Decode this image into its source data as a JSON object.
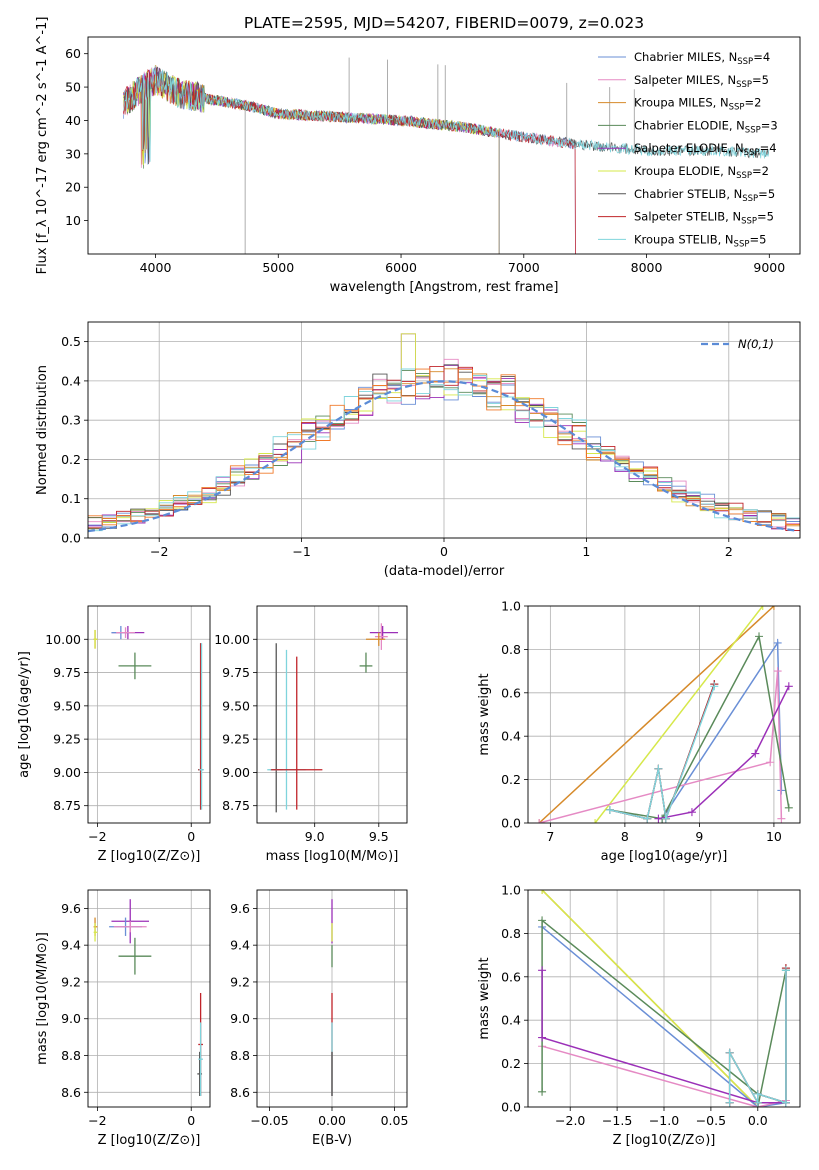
{
  "colors": {
    "Chabrier MILES": "#6a8fd6",
    "Salpeter MILES": "#e58ac4",
    "Kroupa MILES": "#d68a2a",
    "Chabrier ELODIE": "#5a8a5a",
    "Salpeter ELODIE": "#9b30b8",
    "Kroupa ELODIE": "#d6e84a",
    "Chabrier STELIB": "#555555",
    "Salpeter STELIB": "#c0242a",
    "Kroupa STELIB": "#7fd4dc",
    "orange_extra": "#f07a2a",
    "gauss": "#5b8bd6"
  },
  "chart_data": [
    {
      "id": "spectrum",
      "type": "line",
      "title": "PLATE=2595, MJD=54207, FIBERID=0079, z=0.023",
      "xlabel": "wavelength [Angstrom, rest frame]",
      "ylabel": "Flux [f_λ 10^-17 erg cm^-2 s^-1 A^-1]",
      "xlim": [
        3450,
        9250
      ],
      "ylim": [
        0,
        65
      ],
      "xticks": [
        4000,
        5000,
        6000,
        7000,
        8000,
        9000
      ],
      "yticks": [
        10,
        20,
        30,
        40,
        50,
        60
      ],
      "legend_position": "top-right",
      "legend": [
        {
          "model": "Chabrier MILES",
          "n": 4
        },
        {
          "model": "Salpeter MILES",
          "n": 5
        },
        {
          "model": "Kroupa MILES",
          "n": 2
        },
        {
          "model": "Chabrier ELODIE",
          "n": 3
        },
        {
          "model": "Salpeter ELODIE",
          "n": 4
        },
        {
          "model": "Kroupa ELODIE",
          "n": 2
        },
        {
          "model": "Chabrier STELIB",
          "n": 5
        },
        {
          "model": "Salpeter STELIB",
          "n": 5
        },
        {
          "model": "Kroupa STELIB",
          "n": 5
        }
      ],
      "continuum_points": [
        [
          3740,
          45
        ],
        [
          3900,
          50
        ],
        [
          4000,
          52
        ],
        [
          4200,
          48
        ],
        [
          4500,
          46
        ],
        [
          4800,
          44
        ],
        [
          5000,
          42
        ],
        [
          5500,
          41
        ],
        [
          6000,
          40
        ],
        [
          6500,
          38
        ],
        [
          7000,
          35
        ],
        [
          7400,
          33
        ],
        [
          7700,
          32
        ],
        [
          8000,
          31
        ],
        [
          8500,
          31
        ],
        [
          9000,
          30
        ]
      ],
      "series_ends": {
        "Chabrier MILES": 7420,
        "Salpeter MILES": 7420,
        "Kroupa MILES": 6800,
        "Chabrier ELODIE": 6800,
        "Salpeter ELODIE": 6800,
        "Kroupa ELODIE": 6800,
        "Chabrier STELIB": 9000,
        "Salpeter STELIB": 7420,
        "Kroupa STELIB": 9000
      }
    },
    {
      "id": "residuals",
      "type": "step",
      "xlabel": "(data-model)/error",
      "ylabel": "Normed distribution",
      "xlim": [
        -2.5,
        2.5
      ],
      "ylim": [
        0,
        0.55
      ],
      "xticks": [
        -2,
        -1,
        0,
        1,
        2
      ],
      "yticks": [
        0.0,
        0.1,
        0.2,
        0.3,
        0.4,
        0.5
      ],
      "legend_position": "top-right",
      "legend_label": "N(0,1)",
      "bin_width": 0.1
    },
    {
      "id": "age_vs_Z",
      "type": "errorbar",
      "xlabel": "Z [log10(Z/Z⊙)]",
      "ylabel": "age  [log10(age/yr)]",
      "xlim": [
        -2.2,
        0.4
      ],
      "ylim": [
        8.62,
        10.25
      ],
      "xticks": [
        -2,
        0
      ],
      "yticks": [
        8.75,
        9.0,
        9.25,
        9.5,
        9.75,
        10.0
      ],
      "points": [
        {
          "model": "Kroupa MILES",
          "x": -2.05,
          "y": 10.0,
          "xerr": [
            0.03,
            0.05
          ],
          "yerr": [
            0.07,
            0.07
          ]
        },
        {
          "model": "Kroupa ELODIE",
          "x": -2.05,
          "y": 10.0,
          "xerr": [
            0.03,
            0.05
          ],
          "yerr": [
            0.07,
            0.07
          ]
        },
        {
          "model": "Salpeter ELODIE",
          "x": -1.35,
          "y": 10.05,
          "xerr": [
            0.35,
            0.35
          ],
          "yerr": [
            0.05,
            0.05
          ]
        },
        {
          "model": "Chabrier MILES",
          "x": -1.5,
          "y": 10.05,
          "xerr": [
            0.2,
            0.3
          ],
          "yerr": [
            0.05,
            0.05
          ]
        },
        {
          "model": "Salpeter MILES",
          "x": -1.4,
          "y": 10.05,
          "xerr": [
            0.2,
            0.2
          ],
          "yerr": [
            0.04,
            0.04
          ]
        },
        {
          "model": "Chabrier ELODIE",
          "x": -1.2,
          "y": 9.8,
          "xerr": [
            0.35,
            0.35
          ],
          "yerr": [
            0.1,
            0.1
          ]
        },
        {
          "model": "Chabrier STELIB",
          "x": 0.2,
          "y": 9.02,
          "xerr": [
            0.05,
            0.05
          ],
          "yerr": [
            0.3,
            0.95
          ]
        },
        {
          "model": "Salpeter STELIB",
          "x": 0.2,
          "y": 9.02,
          "xerr": [
            0.05,
            0.05
          ],
          "yerr": [
            0.3,
            0.95
          ]
        },
        {
          "model": "Kroupa STELIB",
          "x": 0.22,
          "y": 9.02,
          "xerr": [
            0.05,
            0.05
          ],
          "yerr": [
            0.3,
            0.95
          ]
        }
      ]
    },
    {
      "id": "age_vs_mass",
      "type": "errorbar",
      "xlabel": "mass [log10(M/M⊙)]",
      "ylabel": "",
      "xlim": [
        8.55,
        9.72
      ],
      "ylim": [
        8.62,
        10.25
      ],
      "xticks": [
        9.0,
        9.5
      ],
      "yticks": [
        8.75,
        9.0,
        9.25,
        9.5,
        9.75,
        10.0
      ],
      "points": [
        {
          "model": "Salpeter ELODIE",
          "x": 9.53,
          "y": 10.05,
          "xerr": [
            0.1,
            0.12
          ],
          "yerr": [
            0.05,
            0.05
          ]
        },
        {
          "model": "Salpeter MILES",
          "x": 9.52,
          "y": 10.02,
          "xerr": [
            0.05,
            0.05
          ],
          "yerr": [
            0.1,
            0.1
          ]
        },
        {
          "model": "Kroupa MILES",
          "x": 9.5,
          "y": 10.0,
          "xerr": [
            0.1,
            0.05
          ],
          "yerr": [
            0.05,
            0.05
          ]
        },
        {
          "model": "Chabrier ELODIE",
          "x": 9.4,
          "y": 9.8,
          "xerr": [
            0.05,
            0.05
          ],
          "yerr": [
            0.05,
            0.1
          ]
        },
        {
          "model": "Chabrier STELIB",
          "x": 8.7,
          "y": 9.02,
          "xerr": [
            0.05,
            0.05
          ],
          "yerr": [
            0.32,
            0.95
          ]
        },
        {
          "model": "Kroupa STELIB",
          "x": 8.78,
          "y": 9.02,
          "xerr": [
            0.15,
            0.15
          ],
          "yerr": [
            0.3,
            0.9
          ]
        },
        {
          "model": "Salpeter STELIB",
          "x": 8.86,
          "y": 9.02,
          "xerr": [
            0.2,
            0.2
          ],
          "yerr": [
            0.3,
            0.85
          ]
        }
      ]
    },
    {
      "id": "weight_vs_age",
      "type": "line",
      "xlabel": "age  [log10(age/yr)]",
      "ylabel": "mass weight",
      "xlim": [
        6.7,
        10.35
      ],
      "ylim": [
        0,
        1.0
      ],
      "xticks": [
        7,
        8,
        9,
        10
      ],
      "yticks": [
        0.0,
        0.2,
        0.4,
        0.6,
        0.8,
        1.0
      ],
      "series": [
        {
          "model": "Kroupa MILES",
          "x": [
            6.85,
            10.0
          ],
          "y": [
            0.0,
            1.0
          ]
        },
        {
          "model": "Kroupa ELODIE",
          "x": [
            7.6,
            9.85
          ],
          "y": [
            0.0,
            1.0
          ]
        },
        {
          "model": "Chabrier MILES",
          "x": [
            8.5,
            10.05,
            10.1
          ],
          "y": [
            0.02,
            0.83,
            0.15
          ]
        },
        {
          "model": "Salpeter MILES",
          "x": [
            6.85,
            9.95,
            10.05,
            10.1
          ],
          "y": [
            0.0,
            0.28,
            0.7,
            0.02
          ]
        },
        {
          "model": "Chabrier ELODIE",
          "x": [
            7.8,
            8.5,
            9.8,
            10.2
          ],
          "y": [
            0.06,
            0.02,
            0.86,
            0.07
          ]
        },
        {
          "model": "Salpeter ELODIE",
          "x": [
            8.45,
            8.9,
            9.75,
            10.2
          ],
          "y": [
            0.02,
            0.05,
            0.32,
            0.63
          ]
        },
        {
          "model": "Chabrier STELIB",
          "x": [
            7.8,
            8.3,
            8.45,
            8.55,
            9.2
          ],
          "y": [
            0.06,
            0.02,
            0.25,
            0.02,
            0.64
          ]
        },
        {
          "model": "Salpeter STELIB",
          "x": [
            7.8,
            8.3,
            8.45,
            8.55,
            9.2
          ],
          "y": [
            0.06,
            0.02,
            0.25,
            0.02,
            0.64
          ]
        },
        {
          "model": "Kroupa STELIB",
          "x": [
            7.8,
            8.3,
            8.45,
            8.55,
            9.2
          ],
          "y": [
            0.06,
            0.02,
            0.25,
            0.02,
            0.63
          ]
        }
      ]
    },
    {
      "id": "mass_vs_Z",
      "type": "errorbar",
      "xlabel": "Z [log10(Z/Z⊙)]",
      "ylabel": "mass [log10(M/M⊙)]",
      "xlim": [
        -2.2,
        0.4
      ],
      "ylim": [
        8.52,
        9.7
      ],
      "xticks": [
        -2,
        0
      ],
      "yticks": [
        8.6,
        8.8,
        9.0,
        9.2,
        9.4,
        9.6
      ],
      "points": [
        {
          "model": "Kroupa MILES",
          "x": -2.05,
          "y": 9.5,
          "xerr": [
            0.03,
            0.05
          ],
          "yerr": [
            0.05,
            0.05
          ]
        },
        {
          "model": "Kroupa ELODIE",
          "x": -2.05,
          "y": 9.47,
          "xerr": [
            0.03,
            0.05
          ],
          "yerr": [
            0.05,
            0.05
          ]
        },
        {
          "model": "Salpeter ELODIE",
          "x": -1.3,
          "y": 9.53,
          "xerr": [
            0.4,
            0.4
          ],
          "yerr": [
            0.12,
            0.12
          ]
        },
        {
          "model": "Chabrier MILES",
          "x": -1.4,
          "y": 9.5,
          "xerr": [
            0.35,
            0.35
          ],
          "yerr": [
            0.05,
            0.05
          ]
        },
        {
          "model": "Salpeter MILES",
          "x": -1.3,
          "y": 9.5,
          "xerr": [
            0.35,
            0.35
          ],
          "yerr": [
            0.03,
            0.03
          ]
        },
        {
          "model": "Chabrier ELODIE",
          "x": -1.2,
          "y": 9.34,
          "xerr": [
            0.35,
            0.35
          ],
          "yerr": [
            0.1,
            0.1
          ]
        },
        {
          "model": "Salpeter STELIB",
          "x": 0.2,
          "y": 8.86,
          "xerr": [
            0.05,
            0.05
          ],
          "yerr": [
            0.28,
            0.28
          ]
        },
        {
          "model": "Chabrier STELIB",
          "x": 0.18,
          "y": 8.7,
          "xerr": [
            0.05,
            0.05
          ],
          "yerr": [
            0.12,
            0.12
          ]
        },
        {
          "model": "Kroupa STELIB",
          "x": 0.2,
          "y": 8.78,
          "xerr": [
            0.05,
            0.05
          ],
          "yerr": [
            0.2,
            0.2
          ]
        }
      ]
    },
    {
      "id": "mass_vs_ebv",
      "type": "errorbar",
      "xlabel": "E(B-V)",
      "ylabel": "",
      "xlim": [
        -0.06,
        0.06
      ],
      "ylim": [
        8.52,
        9.7
      ],
      "xticks": [
        -0.05,
        0.0,
        0.05
      ],
      "yticks": [
        8.6,
        8.8,
        9.0,
        9.2,
        9.4,
        9.6
      ],
      "points": [
        {
          "model": "Salpeter ELODIE",
          "x": 0.0,
          "y": 9.53,
          "xerr": [
            0,
            0
          ],
          "yerr": [
            0.12,
            0.12
          ]
        },
        {
          "model": "Kroupa ELODIE",
          "x": 0.0,
          "y": 9.47,
          "xerr": [
            0,
            0
          ],
          "yerr": [
            0.05,
            0.05
          ]
        },
        {
          "model": "Chabrier ELODIE",
          "x": 0.0,
          "y": 9.34,
          "xerr": [
            0,
            0
          ],
          "yerr": [
            0.06,
            0.06
          ]
        },
        {
          "model": "Salpeter STELIB",
          "x": 0.0,
          "y": 8.86,
          "xerr": [
            0,
            0
          ],
          "yerr": [
            0.28,
            0.28
          ]
        },
        {
          "model": "Kroupa STELIB",
          "x": 0.0,
          "y": 8.78,
          "xerr": [
            0,
            0
          ],
          "yerr": [
            0.2,
            0.2
          ]
        },
        {
          "model": "Chabrier STELIB",
          "x": 0.0,
          "y": 8.7,
          "xerr": [
            0,
            0
          ],
          "yerr": [
            0.12,
            0.12
          ]
        }
      ]
    },
    {
      "id": "weight_vs_Z",
      "type": "line",
      "xlabel": "Z [log10(Z/Z⊙)]",
      "ylabel": "mass weight",
      "xlim": [
        -2.45,
        0.45
      ],
      "ylim": [
        0,
        1.0
      ],
      "xticks": [
        -2.0,
        -1.5,
        -1.0,
        -0.5,
        0.0
      ],
      "yticks": [
        0.0,
        0.2,
        0.4,
        0.6,
        0.8,
        1.0
      ],
      "series": [
        {
          "model": "Kroupa MILES",
          "x": [
            -2.3,
            0.0
          ],
          "y": [
            1.0,
            0.0
          ]
        },
        {
          "model": "Kroupa ELODIE",
          "x": [
            -2.3,
            0.0
          ],
          "y": [
            1.0,
            0.0
          ]
        },
        {
          "model": "Chabrier MILES",
          "x": [
            -2.3,
            0.0,
            0.3,
            0.3
          ],
          "y": [
            0.83,
            0.0,
            0.02,
            0.63
          ]
        },
        {
          "model": "Salpeter MILES",
          "x": [
            -2.3,
            0.0,
            0.3
          ],
          "y": [
            0.28,
            0.0,
            0.03
          ]
        },
        {
          "model": "Chabrier ELODIE",
          "x": [
            -2.3,
            -2.3,
            0.0,
            0.0,
            0.3
          ],
          "y": [
            0.07,
            0.86,
            0.06,
            0.0,
            0.63
          ]
        },
        {
          "model": "Salpeter ELODIE",
          "x": [
            -2.3,
            -2.3,
            0.0,
            0.3
          ],
          "y": [
            0.63,
            0.32,
            0.02,
            0.02
          ]
        },
        {
          "model": "Chabrier STELIB",
          "x": [
            -0.3,
            -0.3,
            0.0,
            0.0,
            0.3,
            0.3
          ],
          "y": [
            0.02,
            0.25,
            0.02,
            0.06,
            0.02,
            0.64
          ]
        },
        {
          "model": "Salpeter STELIB",
          "x": [
            -0.3,
            -0.3,
            0.0,
            0.0,
            0.3,
            0.3
          ],
          "y": [
            0.02,
            0.25,
            0.02,
            0.06,
            0.02,
            0.64
          ]
        },
        {
          "model": "Kroupa STELIB",
          "x": [
            -0.3,
            -0.3,
            0.0,
            0.0,
            0.3,
            0.3
          ],
          "y": [
            0.02,
            0.25,
            0.02,
            0.06,
            0.02,
            0.63
          ]
        }
      ]
    }
  ]
}
